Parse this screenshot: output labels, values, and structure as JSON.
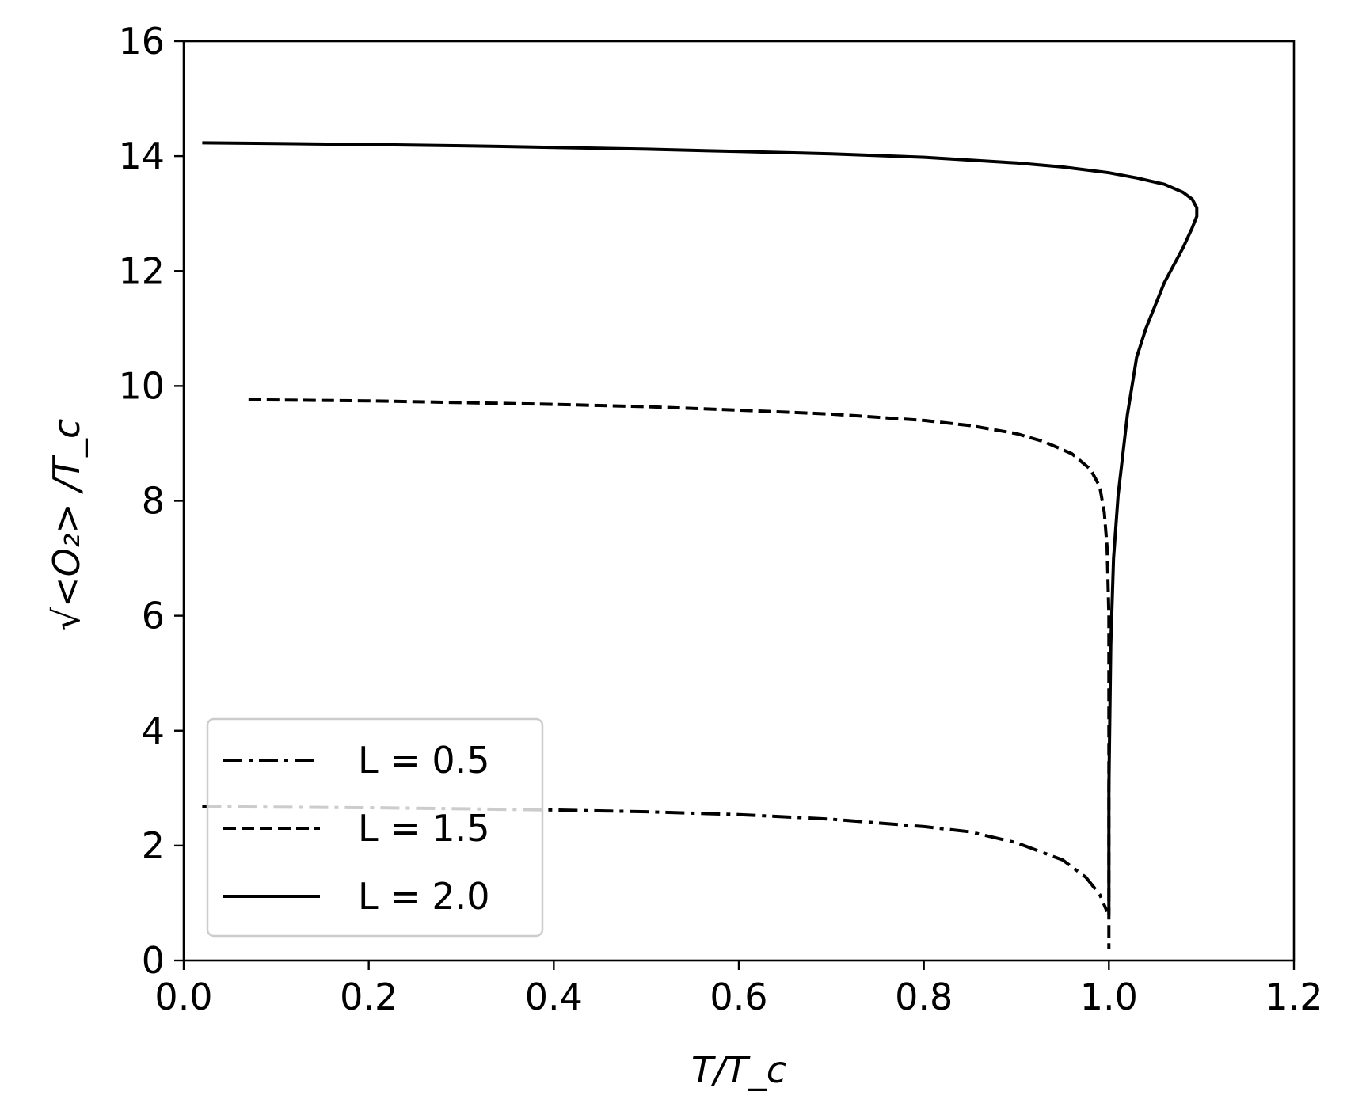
{
  "chart_data": {
    "type": "line",
    "xlabel": "T/T_c",
    "ylabel": "√<O₂> /T_c",
    "xlim": [
      0.0,
      1.2
    ],
    "ylim": [
      0,
      16
    ],
    "x_ticks": [
      "0.0",
      "0.2",
      "0.4",
      "0.6",
      "0.8",
      "1.0",
      "1.2"
    ],
    "y_ticks": [
      "0",
      "2",
      "4",
      "6",
      "8",
      "10",
      "12",
      "14",
      "16"
    ],
    "grid": false,
    "legend_position": "lower-left",
    "series": [
      {
        "name": "L = 0.5",
        "style": "dashdot",
        "color": "#000000",
        "x": [
          0.02,
          0.1,
          0.2,
          0.3,
          0.4,
          0.5,
          0.6,
          0.7,
          0.8,
          0.85,
          0.9,
          0.95,
          0.975,
          0.99,
          0.998
        ],
        "y": [
          2.68,
          2.67,
          2.66,
          2.64,
          2.62,
          2.59,
          2.54,
          2.46,
          2.33,
          2.24,
          2.05,
          1.75,
          1.45,
          1.15,
          0.85
        ]
      },
      {
        "name": "L = 1.5",
        "style": "dashed",
        "color": "#000000",
        "x": [
          0.07,
          0.2,
          0.3,
          0.4,
          0.5,
          0.6,
          0.7,
          0.8,
          0.85,
          0.9,
          0.93,
          0.96,
          0.98,
          0.99,
          0.995,
          0.998,
          1.0,
          1.0,
          1.0
        ],
        "y": [
          9.76,
          9.74,
          9.71,
          9.68,
          9.64,
          9.58,
          9.51,
          9.4,
          9.31,
          9.17,
          9.03,
          8.82,
          8.55,
          8.25,
          7.8,
          7.2,
          6.0,
          3.0,
          0.2
        ]
      },
      {
        "name": "L = 2.0",
        "style": "solid",
        "color": "#000000",
        "x": [
          0.02,
          0.1,
          0.2,
          0.3,
          0.4,
          0.5,
          0.6,
          0.7,
          0.8,
          0.9,
          0.95,
          1.0,
          1.03,
          1.06,
          1.08,
          1.09,
          1.095,
          1.095,
          1.09,
          1.08,
          1.06,
          1.04,
          1.03,
          1.02,
          1.01,
          1.005,
          1.002,
          1.0,
          1.0
        ],
        "y": [
          14.23,
          14.22,
          14.2,
          14.18,
          14.15,
          14.12,
          14.08,
          14.04,
          13.98,
          13.88,
          13.81,
          13.71,
          13.62,
          13.51,
          13.37,
          13.25,
          13.1,
          12.95,
          12.75,
          12.4,
          11.8,
          11.0,
          10.5,
          9.5,
          8.1,
          7.0,
          5.5,
          3.0,
          0.8
        ]
      }
    ]
  }
}
